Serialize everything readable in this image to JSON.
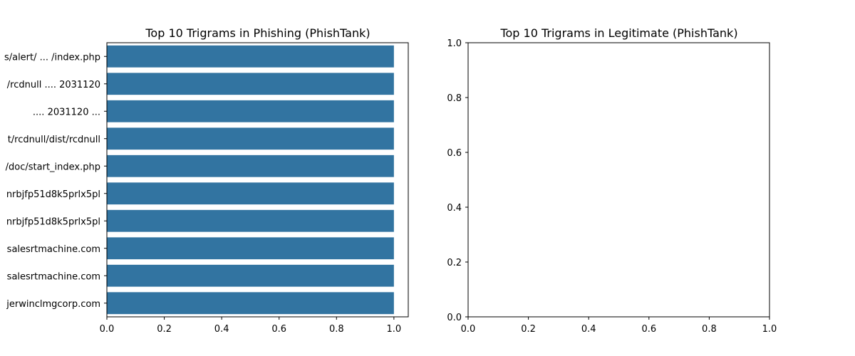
{
  "chart_data": [
    {
      "type": "bar",
      "orientation": "horizontal",
      "title": "Top 10 Trigrams in Phishing (PhishTank)",
      "xlabel": "",
      "ylabel": "",
      "xlim": [
        0,
        1.05
      ],
      "xticks": [
        "0.0",
        "0.2",
        "0.4",
        "0.6",
        "0.8",
        "1.0"
      ],
      "xtick_values": [
        0,
        0.2,
        0.4,
        0.6,
        0.8,
        1.0
      ],
      "categories": [
        "s/alert/ ... /index.php",
        "/rcdnull .... 2031120",
        ".... 2031120 ...",
        "t/rcdnull/dist/rcdnull",
        "/doc/start_index.php",
        "nrbjfp51d8k5prlx5pl",
        "nrbjfp51d8k5prlx5pl",
        "salesrtmachine.com",
        "salesrtmachine.com",
        "jerwinclmgcorp.com"
      ],
      "values": [
        1,
        1,
        1,
        1,
        1,
        1,
        1,
        1,
        1,
        1
      ],
      "bar_color": "#3274a1",
      "grid": false
    },
    {
      "type": "bar",
      "orientation": "horizontal",
      "title": "Top 10 Trigrams in Legitimate (PhishTank)",
      "xlabel": "",
      "ylabel": "",
      "xlim": [
        0,
        1
      ],
      "ylim": [
        0,
        1
      ],
      "xticks": [
        "0.0",
        "0.2",
        "0.4",
        "0.6",
        "0.8",
        "1.0"
      ],
      "xtick_values": [
        0,
        0.2,
        0.4,
        0.6,
        0.8,
        1.0
      ],
      "yticks": [
        "0.0",
        "0.2",
        "0.4",
        "0.6",
        "0.8",
        "1.0"
      ],
      "ytick_values": [
        0,
        0.2,
        0.4,
        0.6,
        0.8,
        1.0
      ],
      "categories": [],
      "values": [],
      "grid": false
    }
  ]
}
